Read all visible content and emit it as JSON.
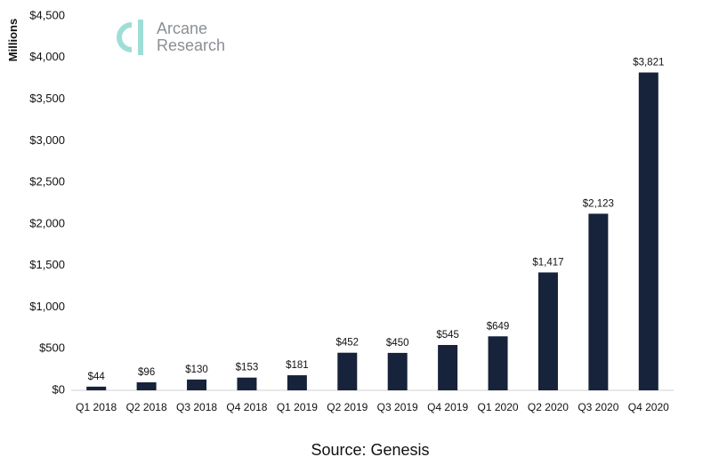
{
  "chart_data": {
    "type": "bar",
    "categories": [
      "Q1 2018",
      "Q2 2018",
      "Q3 2018",
      "Q4 2018",
      "Q1 2019",
      "Q2 2019",
      "Q3 2019",
      "Q4 2019",
      "Q1 2020",
      "Q2 2020",
      "Q3 2020",
      "Q4 2020"
    ],
    "values": [
      44,
      96,
      130,
      153,
      181,
      452,
      450,
      545,
      649,
      1417,
      2123,
      3821
    ],
    "data_labels": [
      "$44",
      "$96",
      "$130",
      "$153",
      "$181",
      "$452",
      "$450",
      "$545",
      "$649",
      "$1,417",
      "$2,123",
      "$3,821"
    ],
    "ylabel": "Millions",
    "xlabel": "",
    "ylim": [
      0,
      4500
    ],
    "yticks": [
      0,
      500,
      1000,
      1500,
      2000,
      2500,
      3000,
      3500,
      4000,
      4500
    ],
    "ytick_labels": [
      "$0",
      "$500",
      "$1,000",
      "$1,500",
      "$2,000",
      "$2,500",
      "$3,000",
      "$3,500",
      "$4,000",
      "$4,500"
    ],
    "grid": false,
    "bar_color": "#17233a"
  },
  "logo": {
    "line1": "Arcane",
    "line2": "Research",
    "icon": "arcane-logo-icon",
    "color": "#9fded6"
  },
  "source": "Source: Genesis"
}
